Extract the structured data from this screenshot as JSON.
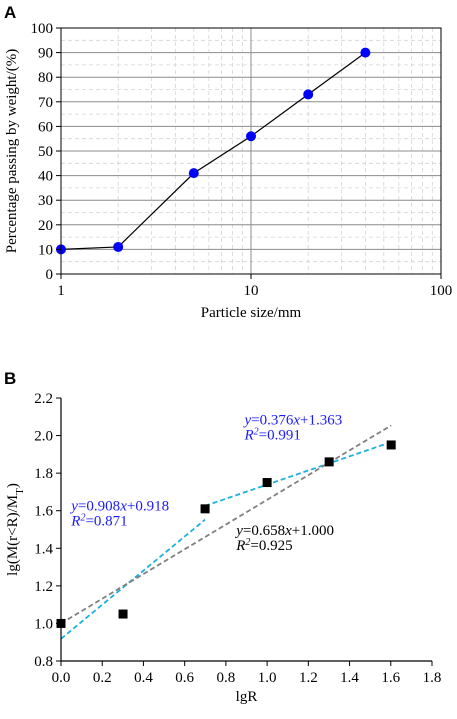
{
  "chart_data": [
    {
      "panel_label": "A",
      "type": "line",
      "x_scale": "log",
      "xlabel": "Particle size/mm",
      "ylabel": "Percentage passing by weight/(%)",
      "xlim": [
        1,
        100
      ],
      "ylim": [
        0,
        100
      ],
      "x_ticks": [
        1,
        10,
        100
      ],
      "x_tick_labels": [
        "1",
        "10",
        "100"
      ],
      "y_ticks": [
        0,
        10,
        20,
        30,
        40,
        50,
        60,
        70,
        80,
        90,
        100
      ],
      "y_tick_labels": [
        "0",
        "10",
        "20",
        "30",
        "40",
        "50",
        "60",
        "70",
        "80",
        "90",
        "100"
      ],
      "grid": true,
      "series": [
        {
          "color": "#0000ff",
          "line_color": "#000000",
          "points": [
            {
              "x": 1,
              "y": 10
            },
            {
              "x": 2,
              "y": 11
            },
            {
              "x": 5,
              "y": 41
            },
            {
              "x": 10,
              "y": 56
            },
            {
              "x": 20,
              "y": 73
            },
            {
              "x": 40,
              "y": 90
            }
          ]
        }
      ]
    },
    {
      "panel_label": "B",
      "type": "scatter",
      "xlabel": "lgR",
      "ylabel": "lg(M(r<R)/MT)",
      "ylabel_parts": {
        "prefix": "lg(M(r<R)/M",
        "sub": "T",
        "suffix": ")"
      },
      "xlim": [
        0.0,
        1.8
      ],
      "ylim": [
        0.8,
        2.2
      ],
      "x_ticks": [
        0.0,
        0.2,
        0.4,
        0.6,
        0.8,
        1.0,
        1.2,
        1.4,
        1.6,
        1.8
      ],
      "x_tick_labels": [
        "0.0",
        "0.2",
        "0.4",
        "0.6",
        "0.8",
        "1.0",
        "1.2",
        "1.4",
        "1.6",
        "1.8"
      ],
      "y_ticks": [
        0.8,
        1.0,
        1.2,
        1.4,
        1.6,
        1.8,
        2.0,
        2.2
      ],
      "y_tick_labels": [
        "0.8",
        "1.0",
        "1.2",
        "1.4",
        "1.6",
        "1.8",
        "2.0",
        "2.2"
      ],
      "grid": false,
      "points": [
        {
          "x": 0.0,
          "y": 1.0
        },
        {
          "x": 0.301,
          "y": 1.05
        },
        {
          "x": 0.699,
          "y": 1.61
        },
        {
          "x": 1.0,
          "y": 1.75
        },
        {
          "x": 1.301,
          "y": 1.86
        },
        {
          "x": 1.602,
          "y": 1.95
        }
      ],
      "point_color": "#000000",
      "fits": [
        {
          "slope": 0.908,
          "intercept": 0.918,
          "x_range": [
            0.0,
            0.699
          ],
          "color": "#1ab0e0",
          "eq_slope": "0.908",
          "eq_intercept": "0.918",
          "r2": "0.871",
          "text_color": "#1a1aff"
        },
        {
          "slope": 0.376,
          "intercept": 1.363,
          "x_range": [
            0.699,
            1.602
          ],
          "color": "#1ab0e0",
          "eq_slope": "0.376",
          "eq_intercept": "1.363",
          "r2": "0.991",
          "text_color": "#1a1aff"
        },
        {
          "slope": 0.658,
          "intercept": 1.0,
          "x_range": [
            0.0,
            1.602
          ],
          "color": "#808080",
          "eq_slope": "0.658",
          "eq_intercept": "1.000",
          "r2": "0.925",
          "text_color": "#000000"
        }
      ]
    }
  ]
}
